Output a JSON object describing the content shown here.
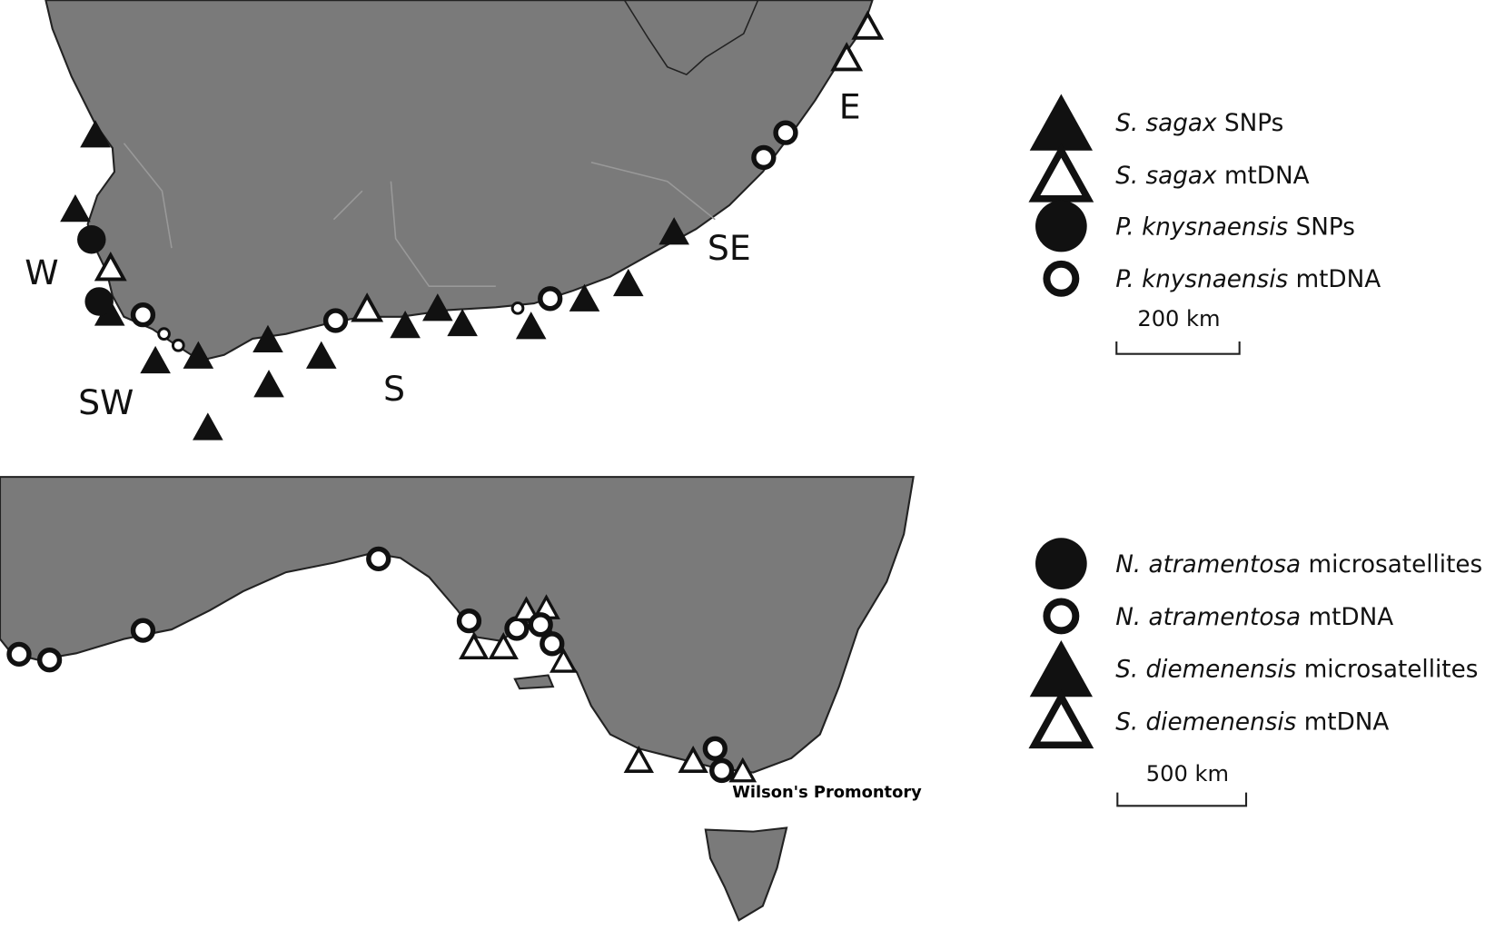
{
  "top_map": {
    "region_labels": [
      "W",
      "SW",
      "S",
      "SE",
      "E"
    ],
    "legend": [
      {
        "species": "S. sagax",
        "data": "SNPs"
      },
      {
        "species": "S. sagax",
        "data": "mtDNA"
      },
      {
        "species": "P. knysnaensis",
        "data": "SNPs"
      },
      {
        "species": "P. knysnaensis",
        "data": "mtDNA"
      }
    ],
    "scale_label": "200 km"
  },
  "bottom_map": {
    "place_label": "Wilson's Promontory",
    "legend": [
      {
        "species": "N. atramentosa",
        "data": "microsatellites"
      },
      {
        "species": "N. atramentosa",
        "data": "mtDNA"
      },
      {
        "species": "S. diemenensis",
        "data": "microsatellites"
      },
      {
        "species": "S. diemenensis",
        "data": "mtDNA"
      }
    ],
    "scale_label": "500 km"
  }
}
